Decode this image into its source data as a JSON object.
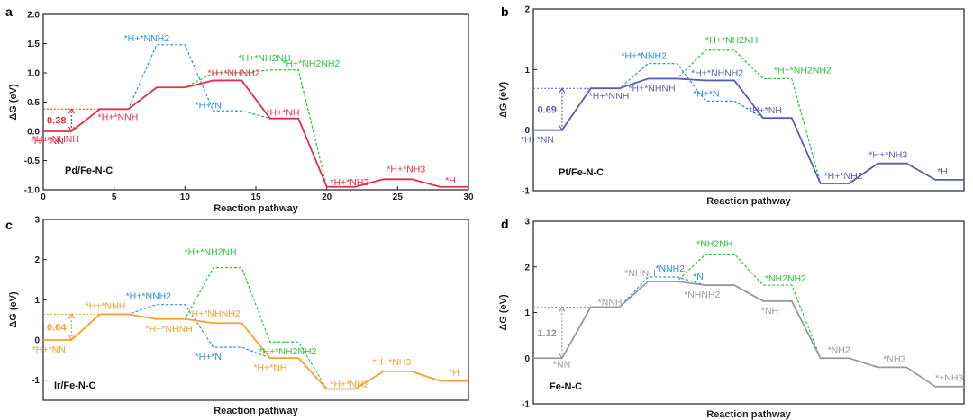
{
  "figure": {
    "xlabel": "Reaction pathway",
    "ylabel": "ΔG (eV)"
  },
  "chart_data": [
    {
      "panel": "a",
      "catalyst": "Pd/Fe-N-C",
      "type": "line",
      "xlim": [
        0,
        30
      ],
      "ylim": [
        -1.0,
        2.0
      ],
      "xticks": [
        0,
        5,
        10,
        15,
        20,
        25,
        30
      ],
      "yticks": [
        -1.0,
        -0.5,
        0.0,
        0.5,
        1.0,
        1.5,
        2.0
      ],
      "ytick_labels": [
        "-1.0",
        "-0.5",
        "0.0",
        "0.5",
        "1.0",
        "1.5",
        "2.0"
      ],
      "annotation": {
        "label": "0.38",
        "value": 0.38,
        "color": "#e03030"
      },
      "series": [
        {
          "name": "main",
          "color": "#e03048",
          "dash": false,
          "steps": [
            [
              0,
              2,
              0.0
            ],
            [
              4,
              6,
              0.38
            ],
            [
              8,
              10,
              0.75
            ],
            [
              12,
              14,
              0.87
            ],
            [
              16,
              18,
              0.22
            ],
            [
              20,
              22,
              -0.95
            ],
            [
              24,
              26,
              -0.82
            ],
            [
              28,
              30,
              -0.95
            ]
          ]
        },
        {
          "name": "branch-blue",
          "color": "#2a8fd8",
          "dash": true,
          "steps": [
            [
              4,
              6,
              0.38
            ],
            [
              8,
              10,
              1.48
            ],
            [
              12,
              14,
              0.35
            ],
            [
              16,
              18,
              0.22
            ]
          ]
        },
        {
          "name": "branch-green",
          "color": "#2fbf3f",
          "dash": true,
          "steps": [
            [
              8,
              10,
              0.75
            ],
            [
              12,
              14,
              1.0
            ],
            [
              16,
              18,
              1.05
            ],
            [
              20,
              22,
              -0.95
            ]
          ]
        }
      ],
      "labels": [
        {
          "text": "*H+*NN",
          "color": "#e03048"
        },
        {
          "text": "*H+*NNH",
          "color": "#e03048"
        },
        {
          "text": "*H+*NNH2",
          "color": "#2a8fd8"
        },
        {
          "text": "*H+*NHNH",
          "color": "#e03048"
        },
        {
          "text": "*H+*NH2NH",
          "color": "#2fbf3f"
        },
        {
          "text": "*H+*NHNH2",
          "color": "#e03048"
        },
        {
          "text": "*H+*N",
          "color": "#2a8fd8"
        },
        {
          "text": "*H+*NH2NH2",
          "color": "#2fbf3f"
        },
        {
          "text": "*H+*NH",
          "color": "#e03048"
        },
        {
          "text": "*H+*NH2",
          "color": "#e03048"
        },
        {
          "text": "*H+*NH3",
          "color": "#e03048"
        },
        {
          "text": "*H",
          "color": "#e03048"
        }
      ]
    },
    {
      "panel": "b",
      "catalyst": "Pt/Fe-N-C",
      "type": "line",
      "xlim": [
        0,
        30
      ],
      "ylim": [
        -1,
        2
      ],
      "yticks": [
        -1,
        0,
        1,
        2
      ],
      "ytick_labels": [
        "-1",
        "0",
        "1",
        "2"
      ],
      "annotation": {
        "label": "0.69",
        "value": 0.69,
        "color": "#5a5fb0"
      },
      "series": [
        {
          "name": "main",
          "color": "#5a5fb0",
          "dash": false,
          "steps": [
            [
              0,
              2,
              0.0
            ],
            [
              4,
              6,
              0.69
            ],
            [
              8,
              10,
              0.85
            ],
            [
              12,
              14,
              0.82
            ],
            [
              16,
              18,
              0.2
            ],
            [
              20,
              22,
              -0.88
            ],
            [
              24,
              26,
              -0.55
            ],
            [
              28,
              30,
              -0.82
            ]
          ]
        },
        {
          "name": "branch-blue",
          "color": "#2a8fd8",
          "dash": true,
          "steps": [
            [
              4,
              6,
              0.69
            ],
            [
              8,
              10,
              1.1
            ],
            [
              12,
              14,
              0.48
            ],
            [
              16,
              18,
              0.2
            ]
          ]
        },
        {
          "name": "branch-green",
          "color": "#2fbf3f",
          "dash": true,
          "steps": [
            [
              8,
              10,
              0.85
            ],
            [
              12,
              14,
              1.32
            ],
            [
              16,
              18,
              0.85
            ],
            [
              20,
              22,
              -0.88
            ]
          ]
        }
      ],
      "labels": [
        {
          "text": "*H+*NN",
          "color": "#5a5fb0"
        },
        {
          "text": "*H+*NNH",
          "color": "#5a5fb0"
        },
        {
          "text": "*H+*NNH2",
          "color": "#2a8fd8"
        },
        {
          "text": "*H+*NHNH",
          "color": "#5a5fb0"
        },
        {
          "text": "*H+*NH2NH",
          "color": "#2fbf3f"
        },
        {
          "text": "*H+*NHNH2",
          "color": "#5a5fb0"
        },
        {
          "text": "*H+*N",
          "color": "#2a8fd8"
        },
        {
          "text": "*H+*NH2NH2",
          "color": "#2fbf3f"
        },
        {
          "text": "*H+*NH",
          "color": "#5a5fb0"
        },
        {
          "text": "*H+*NH2",
          "color": "#5a5fb0"
        },
        {
          "text": "*H+*NH3",
          "color": "#5a5fb0"
        },
        {
          "text": "*H",
          "color": "#5a5fb0"
        }
      ]
    },
    {
      "panel": "c",
      "catalyst": "Ir/Fe-N-C",
      "type": "line",
      "xlim": [
        0,
        30
      ],
      "ylim": [
        -1.5,
        3
      ],
      "yticks": [
        -1,
        0,
        1,
        2,
        3
      ],
      "ytick_labels": [
        "-1",
        "0",
        "1",
        "2",
        "3"
      ],
      "annotation": {
        "label": "0.64",
        "value": 0.64,
        "color": "#f0a030"
      },
      "series": [
        {
          "name": "main",
          "color": "#f5a030",
          "dash": false,
          "steps": [
            [
              0,
              2,
              0.0
            ],
            [
              4,
              6,
              0.64
            ],
            [
              8,
              10,
              0.52
            ],
            [
              12,
              14,
              0.42
            ],
            [
              16,
              18,
              -0.45
            ],
            [
              20,
              22,
              -1.22
            ],
            [
              24,
              26,
              -0.78
            ],
            [
              28,
              30,
              -1.02
            ]
          ]
        },
        {
          "name": "branch-blue",
          "color": "#2a8fd8",
          "dash": true,
          "steps": [
            [
              4,
              6,
              0.64
            ],
            [
              8,
              10,
              0.88
            ],
            [
              12,
              14,
              -0.18
            ],
            [
              16,
              18,
              -0.45
            ]
          ]
        },
        {
          "name": "branch-green",
          "color": "#2fbf3f",
          "dash": true,
          "steps": [
            [
              8,
              10,
              0.52
            ],
            [
              12,
              14,
              1.8
            ],
            [
              16,
              18,
              -0.05
            ],
            [
              20,
              22,
              -1.22
            ]
          ]
        }
      ],
      "labels": [
        {
          "text": "*H+*NN",
          "color": "#f5a030"
        },
        {
          "text": "*H+*NNH",
          "color": "#f5a030"
        },
        {
          "text": "*H+*NNH2",
          "color": "#2a8fd8"
        },
        {
          "text": "*H+*NHNH",
          "color": "#f5a030"
        },
        {
          "text": "*H+*NH2NH",
          "color": "#2fbf3f"
        },
        {
          "text": "*H+*NHNH2",
          "color": "#f5a030"
        },
        {
          "text": "*H+*N",
          "color": "#2a8fd8"
        },
        {
          "text": "*H+*NH2NH2",
          "color": "#2fbf3f"
        },
        {
          "text": "*H+*NH",
          "color": "#f5a030"
        },
        {
          "text": "*H+*NH2",
          "color": "#f5a030"
        },
        {
          "text": "*H+*NH3",
          "color": "#f5a030"
        },
        {
          "text": "*H",
          "color": "#f5a030"
        }
      ]
    },
    {
      "panel": "d",
      "catalyst": "Fe-N-C",
      "type": "line",
      "xlim": [
        0,
        30
      ],
      "ylim": [
        -1,
        3
      ],
      "yticks": [
        -1,
        0,
        1,
        2,
        3
      ],
      "ytick_labels": [
        "-1",
        "0",
        "1",
        "2",
        "3"
      ],
      "annotation": {
        "label": "1.12",
        "value": 1.12,
        "color": "#9a9a9a"
      },
      "series": [
        {
          "name": "main",
          "color": "#9a9a9a",
          "dash": false,
          "steps": [
            [
              0,
              2,
              0.0
            ],
            [
              4,
              6,
              1.12
            ],
            [
              8,
              10,
              1.68
            ],
            [
              12,
              14,
              1.6
            ],
            [
              16,
              18,
              1.25
            ],
            [
              20,
              22,
              0.0
            ],
            [
              24,
              26,
              -0.2
            ],
            [
              28,
              30,
              -0.62
            ]
          ]
        },
        {
          "name": "branch-blue",
          "color": "#2a8fd8",
          "dash": true,
          "steps": [
            [
              4,
              6,
              1.12
            ],
            [
              8,
              10,
              1.78
            ],
            [
              12,
              14,
              1.6
            ],
            [
              16,
              18,
              1.25
            ]
          ]
        },
        {
          "name": "branch-green",
          "color": "#2fbf3f",
          "dash": true,
          "steps": [
            [
              8,
              10,
              1.68
            ],
            [
              12,
              14,
              2.28
            ],
            [
              16,
              18,
              1.6
            ],
            [
              20,
              22,
              0.0
            ]
          ]
        }
      ],
      "labels": [
        {
          "text": "*NN",
          "color": "#9a9a9a"
        },
        {
          "text": "*NNH",
          "color": "#9a9a9a"
        },
        {
          "text": "*NNH2",
          "color": "#2a8fd8"
        },
        {
          "text": "*NHNH",
          "color": "#9a9a9a"
        },
        {
          "text": "*NH2NH",
          "color": "#2fbf3f"
        },
        {
          "text": "*NHNH2",
          "color": "#9a9a9a"
        },
        {
          "text": "*N",
          "color": "#2a8fd8"
        },
        {
          "text": "*NH2NH2",
          "color": "#2fbf3f"
        },
        {
          "text": "*NH",
          "color": "#9a9a9a"
        },
        {
          "text": "*NH2",
          "color": "#9a9a9a"
        },
        {
          "text": "*NH3",
          "color": "#9a9a9a"
        },
        {
          "text": "*+NH3",
          "color": "#9a9a9a"
        }
      ]
    }
  ]
}
